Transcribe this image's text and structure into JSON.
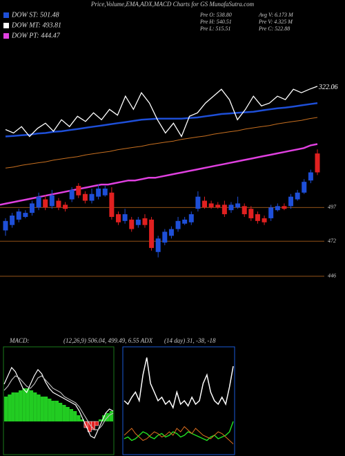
{
  "header": {
    "title": "Price,Volume,EMA,ADX,MACD Charts for GS MunafaSutra.com",
    "legend": [
      {
        "name": "DOW ST: 501.48",
        "color": "#1e4fd8"
      },
      {
        "name": "DOW MT: 493.81",
        "color": "#ffffff"
      },
      {
        "name": "DOW PT: 444.47",
        "color": "#e040e0"
      }
    ],
    "stats": [
      "Pre O: 538.80",
      "Avg V: 6.173 M",
      "Pre H: 540.51",
      "Pre V: 4.325 M",
      "Pre L: 515.51",
      "Pre C: 522.88"
    ]
  },
  "chart_data": [
    {
      "type": "line",
      "ylim": [
        160,
        340
      ],
      "series": [
        {
          "name": "orange",
          "color": "#c87020",
          "values": [
            180,
            182,
            185,
            187,
            189,
            191,
            194,
            196,
            198,
            200,
            203,
            205,
            207,
            209,
            212,
            214,
            216,
            218,
            221,
            223,
            225,
            227,
            230,
            232,
            234,
            236,
            239,
            241,
            243,
            245,
            248,
            250,
            252,
            254,
            257,
            259,
            261,
            263,
            266,
            268
          ]
        },
        {
          "name": "blue",
          "color": "#1e4fd8",
          "values": [
            235,
            236,
            237,
            238,
            240,
            241,
            243,
            244,
            246,
            248,
            250,
            252,
            254,
            256,
            258,
            260,
            262,
            264,
            265,
            266,
            266,
            266,
            266,
            267,
            268,
            270,
            272,
            274,
            275,
            276,
            277,
            278,
            280,
            282,
            284,
            285,
            287,
            289,
            291,
            293
          ]
        },
        {
          "name": "white",
          "color": "#ffffff",
          "values": [
            247,
            241,
            252,
            235,
            249,
            258,
            244,
            264,
            252,
            270,
            261,
            276,
            264,
            282,
            272,
            305,
            282,
            311,
            293,
            264,
            241,
            258,
            235,
            270,
            276,
            293,
            305,
            317,
            299,
            264,
            282,
            305,
            288,
            293,
            305,
            299,
            317,
            311,
            317,
            322.06
          ]
        }
      ]
    },
    {
      "type": "candlestick",
      "ylim": [
        405,
        620
      ],
      "yticks": [
        497,
        472,
        446
      ],
      "grid_color": "#c87020",
      "up_color": "#1e4fd8",
      "down_color": "#e02020",
      "open": [
        480,
        484,
        488,
        490,
        493,
        497,
        503,
        498,
        502,
        499,
        503,
        513,
        507,
        502,
        505,
        506,
        508,
        492,
        487,
        488,
        484,
        489,
        488,
        464,
        471,
        476,
        481,
        485,
        486,
        496,
        502,
        500,
        499,
        499,
        495,
        497,
        498,
        496,
        492,
        489,
        489,
        495,
        498,
        498,
        503,
        508,
        517,
        537
      ],
      "high": [
        489,
        493,
        496,
        495,
        502,
        508,
        506,
        510,
        504,
        501,
        512,
        515,
        509,
        511,
        514,
        513,
        512,
        494,
        496,
        490,
        490,
        492,
        490,
        476,
        481,
        483,
        490,
        490,
        494,
        509,
        505,
        502,
        501,
        502,
        501,
        505,
        500,
        498,
        494,
        491,
        499,
        500,
        500,
        507,
        510,
        518,
        525,
        540
      ],
      "low": [
        476,
        482,
        486,
        489,
        491,
        495,
        495,
        496,
        495,
        494,
        501,
        504,
        500,
        500,
        503,
        505,
        488,
        484,
        485,
        479,
        482,
        482,
        465,
        460,
        469,
        474,
        479,
        484,
        484,
        494,
        496,
        496,
        496,
        490,
        493,
        496,
        490,
        487,
        485,
        484,
        487,
        494,
        495,
        496,
        502,
        507,
        515,
        521
      ],
      "close": [
        487,
        491,
        494,
        493,
        500,
        505,
        497,
        506,
        497,
        496,
        510,
        506,
        502,
        507,
        511,
        511,
        490,
        486,
        492,
        481,
        488,
        484,
        467,
        474,
        479,
        481,
        487,
        488,
        492,
        505,
        497,
        497,
        497,
        492,
        499,
        500,
        492,
        489,
        487,
        486,
        497,
        498,
        496,
        505,
        508,
        516,
        523,
        523
      ],
      "series": [
        {
          "name": "pink",
          "color": "#e040e0",
          "values": [
            499,
            500,
            501,
            502,
            503,
            504,
            505,
            506,
            507,
            508,
            509,
            510,
            511,
            512,
            513,
            514,
            514,
            515,
            516,
            517,
            517,
            518,
            519,
            519,
            520,
            521,
            522,
            523,
            524,
            525,
            526,
            527,
            528,
            529,
            530,
            531,
            532,
            533,
            534,
            535,
            536,
            537,
            538,
            539,
            540,
            541,
            543,
            544
          ]
        }
      ]
    },
    {
      "type": "macd",
      "label": "MACD:",
      "params": "(12,26,9) 506.04, 499.49, 6.55 ADX",
      "ylim": [
        -15,
        35
      ],
      "pos_color": "#22cc22",
      "neg_color": "#e02020",
      "histogram": [
        12,
        13,
        14,
        14,
        15,
        16,
        16,
        15,
        14,
        13,
        12,
        12,
        11,
        10,
        10,
        9,
        8,
        7,
        6,
        5,
        3,
        1,
        -3,
        -5,
        -4,
        -2,
        1,
        3,
        4,
        5
      ],
      "series": [
        {
          "name": "macd",
          "color": "#ffffff",
          "values": [
            18,
            22,
            26,
            24,
            20,
            16,
            14,
            18,
            22,
            25,
            23,
            19,
            16,
            14,
            13,
            12,
            11,
            10,
            9,
            8,
            5,
            1,
            -3,
            -7,
            -8,
            -4,
            0,
            4,
            6,
            5
          ]
        },
        {
          "name": "signal",
          "color": "#bbbbbb",
          "values": [
            15,
            17,
            20,
            22,
            21,
            19,
            17,
            16,
            18,
            21,
            22,
            20,
            18,
            16,
            15,
            14,
            12,
            11,
            10,
            9,
            7,
            4,
            1,
            -2,
            -4,
            -4,
            -2,
            1,
            3,
            4
          ]
        }
      ]
    },
    {
      "type": "adx",
      "params": "(14 day) 31, -38, -18",
      "ylim": [
        0,
        60
      ],
      "series": [
        {
          "name": "adx",
          "color": "#ffffff",
          "values": [
            30,
            28,
            32,
            35,
            30,
            45,
            55,
            40,
            35,
            30,
            32,
            28,
            30,
            26,
            35,
            28,
            30,
            27,
            32,
            28,
            30,
            40,
            45,
            35,
            30,
            28,
            32,
            28,
            38,
            50
          ]
        },
        {
          "name": "plus",
          "color": "#22dd22",
          "values": [
            8,
            9,
            7,
            8,
            10,
            12,
            11,
            9,
            8,
            10,
            11,
            9,
            10,
            12,
            11,
            9,
            10,
            12,
            11,
            10,
            9,
            8,
            7,
            9,
            10,
            8,
            9,
            10,
            12,
            18
          ]
        },
        {
          "name": "minus",
          "color": "#e07020",
          "values": [
            10,
            12,
            14,
            11,
            9,
            7,
            8,
            10,
            12,
            11,
            9,
            10,
            12,
            10,
            14,
            12,
            15,
            13,
            11,
            14,
            12,
            10,
            9,
            8,
            10,
            12,
            11,
            9,
            7,
            5
          ]
        }
      ]
    }
  ]
}
